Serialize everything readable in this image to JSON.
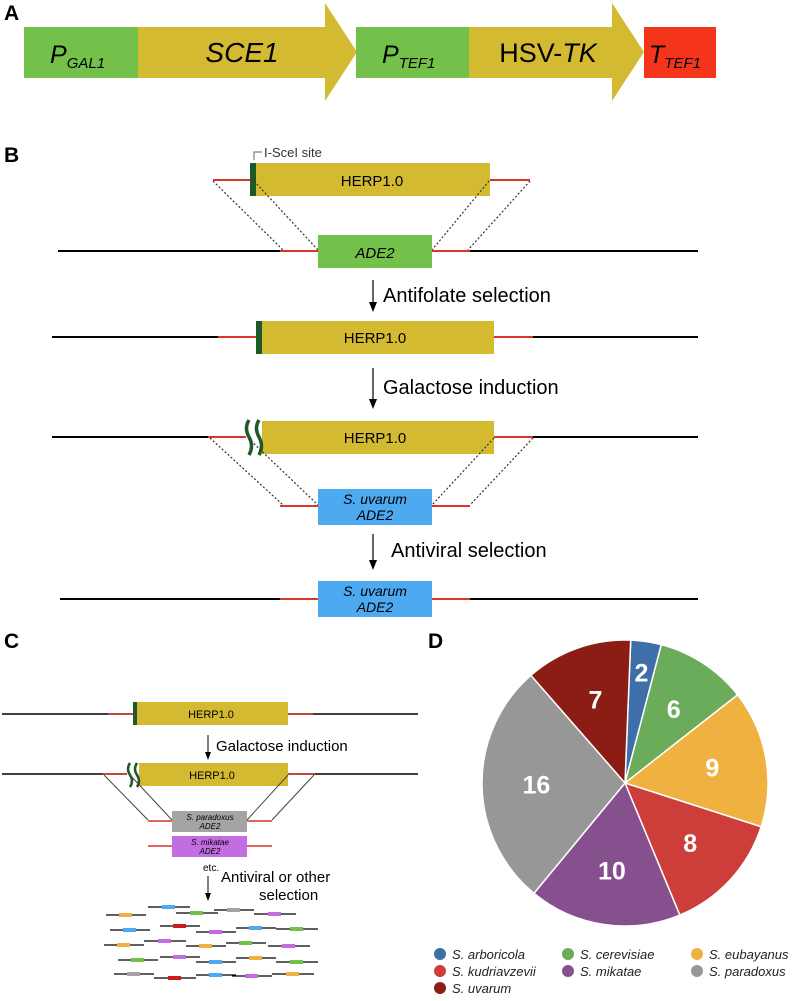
{
  "panel_labels": {
    "a": "A",
    "b": "B",
    "c": "C",
    "d": "D"
  },
  "colors": {
    "promoter_green": "#73c04a",
    "gene_yellow": "#d4ba31",
    "terminator_red": "#f4351c",
    "ade2_blue": "#4da9f0",
    "dna_black": "#000000",
    "homology_red": "#d9352a",
    "isce_green": "#1e5a28",
    "paradoxus_grey": "#a4a4a4",
    "mikatae_purple": "#c26de0"
  },
  "panel_a": {
    "p_gal1": {
      "letter": "P",
      "sub": "GAL1"
    },
    "sce1": "SCE1",
    "p_tef1": {
      "letter": "P",
      "sub": "TEF1"
    },
    "hsv_tk": {
      "prefix": "HSV-",
      "italic": "TK"
    },
    "t_tef1": {
      "letter": "T",
      "sub": "TEF1"
    }
  },
  "panel_b": {
    "site_label": "I-SceI site",
    "herp": "HERP1.0",
    "ade2": "ADE2",
    "step1": "Antifolate selection",
    "step2": "Galactose induction",
    "uvarum_line1": "S. uvarum",
    "uvarum_line2": "ADE2",
    "step3": "Antiviral selection"
  },
  "panel_c": {
    "herp": "HERP1.0",
    "step1": "Galactose induction",
    "paradoxus_line1": "S. paradoxus",
    "paradoxus_line2": "ADE2",
    "mikatae_line1": "S. mikatae",
    "mikatae_line2": "ADE2",
    "etc": "etc.",
    "step2_line1": "Antiviral or other",
    "step2_line2": "selection"
  },
  "chart_data": {
    "type": "pie",
    "start": "top, clockwise",
    "slices": [
      {
        "label": "S. arboricola",
        "value": 2,
        "color": "#3f6fa8"
      },
      {
        "label": "S. cerevisiae",
        "value": 6,
        "color": "#6aac5a"
      },
      {
        "label": "S. eubayanus",
        "value": 9,
        "color": "#efb13f"
      },
      {
        "label": "S. kudriavzevii",
        "value": 8,
        "color": "#cd3e3a"
      },
      {
        "label": "S. mikatae",
        "value": 10,
        "color": "#86508f"
      },
      {
        "label": "S. paradoxus",
        "value": 16,
        "color": "#979797"
      },
      {
        "label": "S. uvarum",
        "value": 7,
        "color": "#8c1d14"
      }
    ],
    "legend": {
      "placement": "bottom",
      "columns": 3
    }
  }
}
